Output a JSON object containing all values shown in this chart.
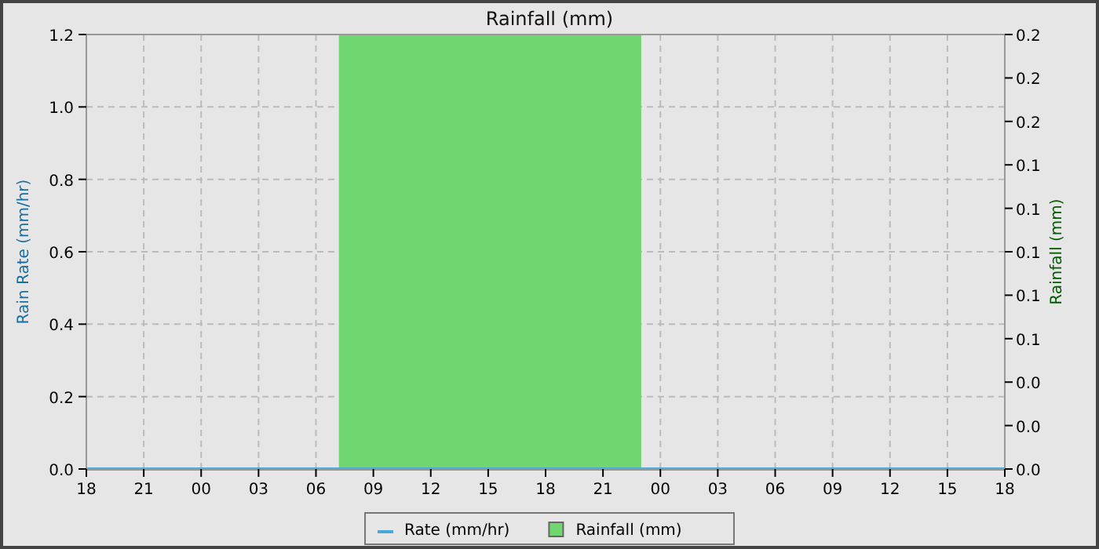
{
  "chart_data": {
    "type": "line",
    "title": "Rainfall (mm)",
    "ylabel": "Rain Rate (mm/hr)",
    "y2label": "Rainfall (mm)",
    "xlim": [
      18,
      66
    ],
    "xticks": [
      {
        "value": 18,
        "label": "18"
      },
      {
        "value": 21,
        "label": "21"
      },
      {
        "value": 24,
        "label": "00"
      },
      {
        "value": 27,
        "label": "03"
      },
      {
        "value": 30,
        "label": "06"
      },
      {
        "value": 33,
        "label": "09"
      },
      {
        "value": 36,
        "label": "12"
      },
      {
        "value": 39,
        "label": "15"
      },
      {
        "value": 42,
        "label": "18"
      },
      {
        "value": 45,
        "label": "21"
      },
      {
        "value": 48,
        "label": "00"
      },
      {
        "value": 51,
        "label": "03"
      },
      {
        "value": 54,
        "label": "06"
      },
      {
        "value": 57,
        "label": "09"
      },
      {
        "value": 60,
        "label": "12"
      },
      {
        "value": 63,
        "label": "15"
      },
      {
        "value": 66,
        "label": "18"
      }
    ],
    "ylim": [
      0,
      1.2
    ],
    "yticks": [
      {
        "value": 0,
        "label": "0.0"
      },
      {
        "value": 0.2,
        "label": "0.2"
      },
      {
        "value": 0.4,
        "label": "0.4"
      },
      {
        "value": 0.6,
        "label": "0.6"
      },
      {
        "value": 0.8,
        "label": "0.8"
      },
      {
        "value": 1,
        "label": "1.0"
      },
      {
        "value": 1.2,
        "label": "1.2"
      }
    ],
    "y2lim": [
      0,
      0.2
    ],
    "y2ticks": [
      {
        "value": 0,
        "label": "0.0"
      },
      {
        "value": 0.02,
        "label": "0.0"
      },
      {
        "value": 0.04,
        "label": "0.0"
      },
      {
        "value": 0.06,
        "label": "0.1"
      },
      {
        "value": 0.08,
        "label": "0.1"
      },
      {
        "value": 0.1,
        "label": "0.1"
      },
      {
        "value": 0.12,
        "label": "0.1"
      },
      {
        "value": 0.14,
        "label": "0.1"
      },
      {
        "value": 0.16,
        "label": "0.2"
      },
      {
        "value": 0.18,
        "label": "0.2"
      },
      {
        "value": 0.2,
        "label": "0.2"
      }
    ],
    "grid": true,
    "legend": "bottom",
    "series": [
      {
        "name": "Rainfall (mm)",
        "type": "area",
        "axis": "y2",
        "color": "#70d670",
        "x": [
          31.2,
          47
        ],
        "values": [
          0.2,
          0.2
        ]
      },
      {
        "name": "Rate (mm/hr)",
        "color": "#4aa8d8",
        "x": [
          18,
          66
        ],
        "values": [
          0,
          0
        ]
      }
    ]
  }
}
